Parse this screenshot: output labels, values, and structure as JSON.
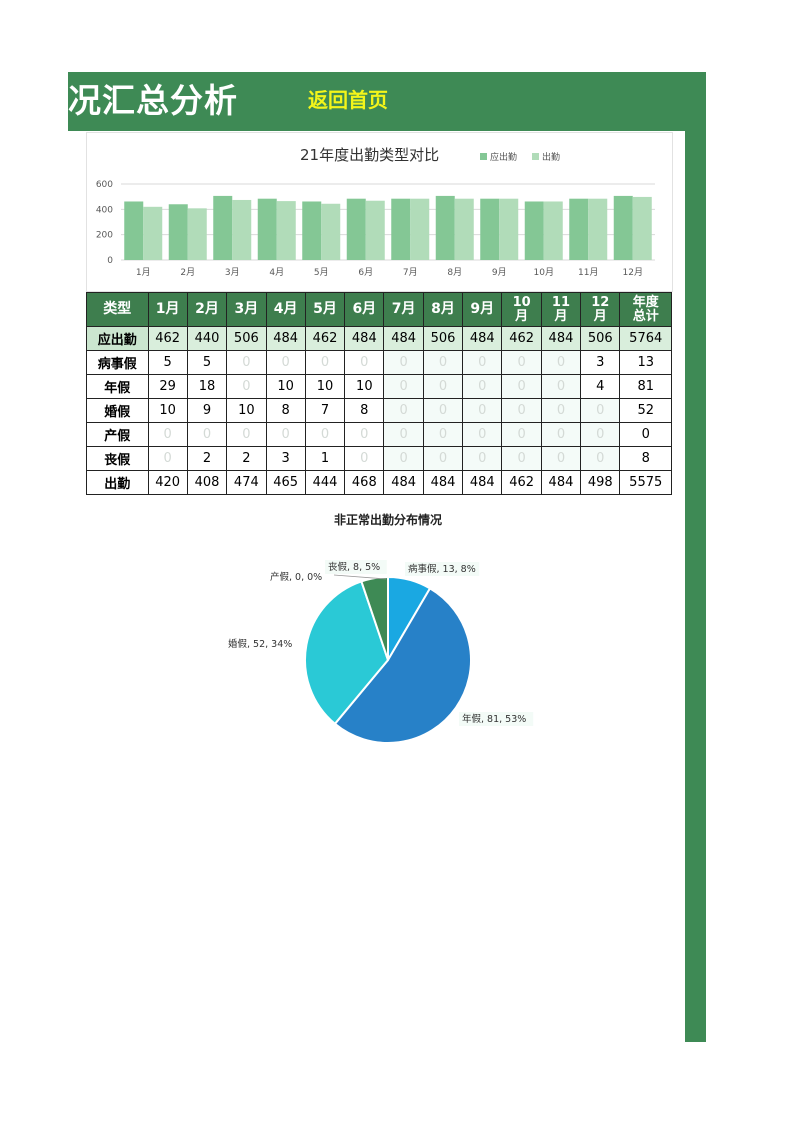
{
  "header": {
    "title": "况汇总分析",
    "home_label": "返回首页"
  },
  "colors": {
    "brand_green": "#3e8a55",
    "table_header": "#3e7e4e",
    "link_yellow": "#f3f51a",
    "bar_should": "#84c795",
    "bar_actual": "#b1dcb9",
    "pie_sick": "#1aa8e2",
    "pie_annual": "#2781c8",
    "pie_marriage": "#2ac9d6",
    "pie_maternity": "#2a7ec2",
    "pie_bereavement": "#3e8a55"
  },
  "bar_chart": {
    "chart_data": {
      "type": "bar",
      "title": "21年度出勤类型对比",
      "categories": [
        "1月",
        "2月",
        "3月",
        "4月",
        "5月",
        "6月",
        "7月",
        "8月",
        "9月",
        "10月",
        "11月",
        "12月"
      ],
      "series": [
        {
          "name": "应出勤",
          "values": [
            462,
            440,
            506,
            484,
            462,
            484,
            484,
            506,
            484,
            462,
            484,
            506
          ]
        },
        {
          "name": "出勤",
          "values": [
            420,
            408,
            474,
            465,
            444,
            468,
            484,
            484,
            484,
            462,
            484,
            498
          ]
        }
      ],
      "yticks": [
        "0",
        "200",
        "400",
        "600"
      ],
      "ylim": [
        0,
        600
      ],
      "legend": "top-right",
      "grid": true
    }
  },
  "table": {
    "columns": [
      "类型",
      "1月",
      "2月",
      "3月",
      "4月",
      "5月",
      "6月",
      "7月",
      "8月",
      "9月",
      "10\n月",
      "11\n月",
      "12\n月",
      "年度\n总计"
    ],
    "rows": [
      {
        "label": "应出勤",
        "values": [
          "462",
          "440",
          "506",
          "484",
          "462",
          "484",
          "484",
          "506",
          "484",
          "462",
          "484",
          "506",
          "5764"
        ]
      },
      {
        "label": "病事假",
        "values": [
          "5",
          "5",
          "0",
          "0",
          "0",
          "0",
          "0",
          "0",
          "0",
          "0",
          "0",
          "3",
          "13"
        ]
      },
      {
        "label": "年假",
        "values": [
          "29",
          "18",
          "0",
          "10",
          "10",
          "10",
          "0",
          "0",
          "0",
          "0",
          "0",
          "4",
          "81"
        ]
      },
      {
        "label": "婚假",
        "values": [
          "10",
          "9",
          "10",
          "8",
          "7",
          "8",
          "0",
          "0",
          "0",
          "0",
          "0",
          "0",
          "52"
        ]
      },
      {
        "label": "产假",
        "values": [
          "0",
          "0",
          "0",
          "0",
          "0",
          "0",
          "0",
          "0",
          "0",
          "0",
          "0",
          "0",
          "0"
        ]
      },
      {
        "label": "丧假",
        "values": [
          "0",
          "2",
          "2",
          "3",
          "1",
          "0",
          "0",
          "0",
          "0",
          "0",
          "0",
          "0",
          "8"
        ]
      },
      {
        "label": "出勤",
        "values": [
          "420",
          "408",
          "474",
          "465",
          "444",
          "468",
          "484",
          "484",
          "484",
          "462",
          "484",
          "498",
          "5575"
        ]
      }
    ]
  },
  "pie_chart": {
    "chart_data": {
      "type": "pie",
      "title": "非正常出勤分布情况",
      "slices": [
        {
          "label": "病事假",
          "value": 13,
          "percent": "8%",
          "text": "病事假, 13, 8%"
        },
        {
          "label": "年假",
          "value": 81,
          "percent": "53%",
          "text": "年假, 81, 53%"
        },
        {
          "label": "婚假",
          "value": 52,
          "percent": "34%",
          "text": "婚假, 52, 34%"
        },
        {
          "label": "产假",
          "value": 0,
          "percent": "0%",
          "text": "产假, 0, 0%"
        },
        {
          "label": "丧假",
          "value": 8,
          "percent": "5%",
          "text": "丧假, 8, 5%"
        }
      ]
    }
  }
}
